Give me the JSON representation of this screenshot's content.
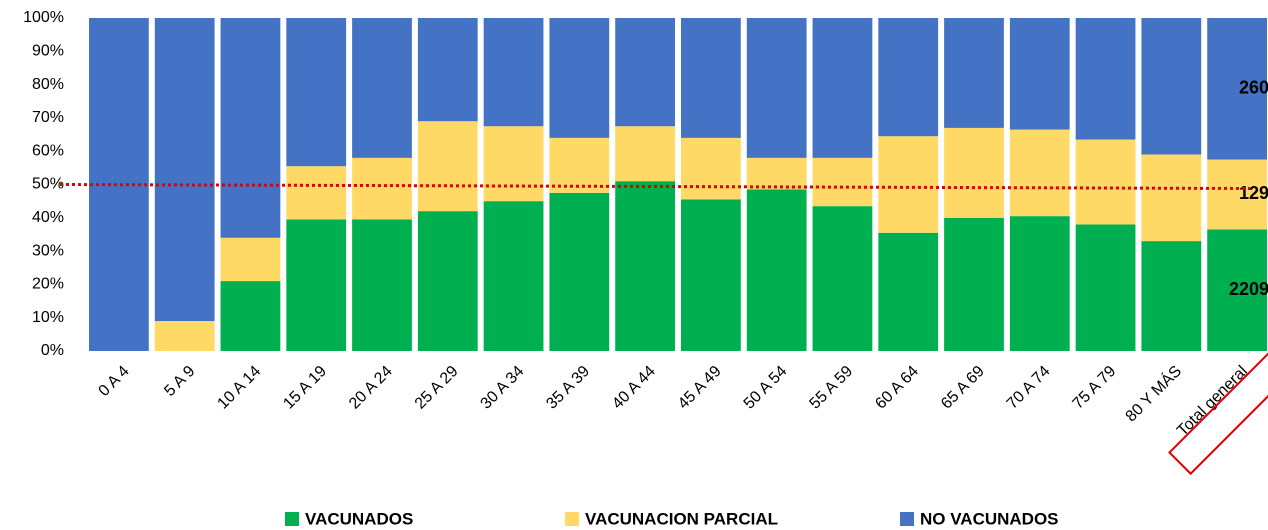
{
  "chart_data": {
    "type": "stacked_bar_100",
    "categories": [
      "0 A 4",
      "5 A 9",
      "10 A 14",
      "15 A 19",
      "20 A 24",
      "25 A 29",
      "30 A 34",
      "35 A 39",
      "40 A 44",
      "45 A 49",
      "50 A 54",
      "55 A 59",
      "60 A 64",
      "65 A 69",
      "70 A 74",
      "75 A 79",
      "80 Y MÁS",
      "Total general"
    ],
    "series": [
      {
        "name": "VACUNADOS",
        "color": "#00b050",
        "values": [
          0,
          0,
          21,
          39.5,
          39.5,
          42,
          45,
          47.5,
          51,
          45.5,
          48.5,
          43.5,
          35.5,
          40,
          40.5,
          38,
          33,
          36.5
        ]
      },
      {
        "name": "VACUNACION PARCIAL",
        "color": "#ffd966",
        "values": [
          0,
          9,
          13,
          16,
          18.5,
          27,
          22.5,
          16.5,
          16.5,
          18.5,
          9.5,
          14.5,
          29,
          27,
          26,
          25.5,
          26,
          21
        ]
      },
      {
        "name": "NO VACUNADOS",
        "color": "#4472c4",
        "values": [
          100,
          91,
          66,
          44.5,
          42,
          31,
          32.5,
          36,
          32.5,
          36,
          42,
          42,
          35.5,
          33,
          33.5,
          36.5,
          41,
          42.5
        ]
      }
    ],
    "annotations": [
      "2209",
      "129",
      "260"
    ],
    "reference_line": 50,
    "reference_color": "#e00000",
    "ylim": [
      0,
      100
    ],
    "yticks": [
      {
        "value": 0,
        "label": "0%"
      },
      {
        "value": 10,
        "label": "10%"
      },
      {
        "value": 20,
        "label": "20%"
      },
      {
        "value": 30,
        "label": "30%"
      },
      {
        "value": 40,
        "label": "40%"
      },
      {
        "value": 50,
        "label": "50%"
      },
      {
        "value": 60,
        "label": "60%"
      },
      {
        "value": 70,
        "label": "70%"
      },
      {
        "value": 80,
        "label": "80%"
      },
      {
        "value": 90,
        "label": "90%"
      },
      {
        "value": 100,
        "label": "100%"
      }
    ],
    "legend": "bottom"
  }
}
